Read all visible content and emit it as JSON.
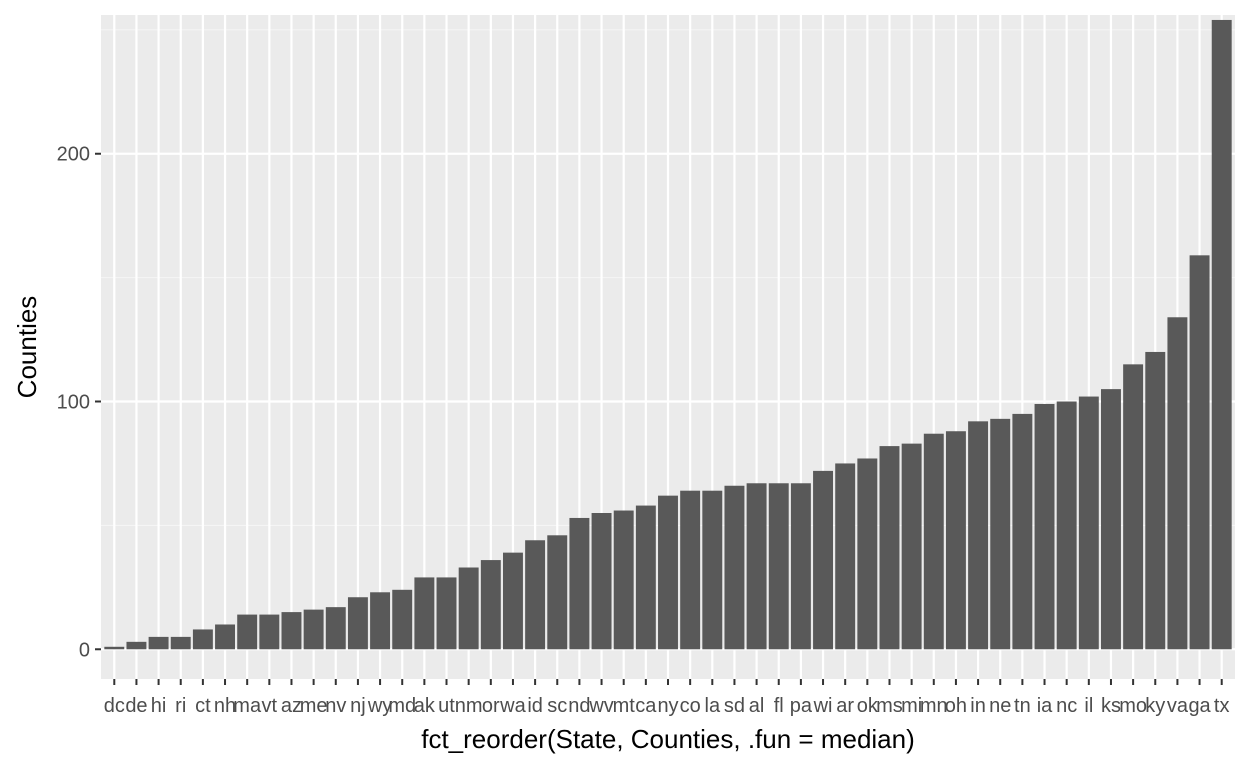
{
  "chart_data": {
    "type": "bar",
    "title": "",
    "xlabel": "fct_reorder(State, Counties, .fun = median)",
    "ylabel": "Counties",
    "ylim": [
      -12,
      256
    ],
    "yticks": [
      0,
      100,
      200
    ],
    "grid": true,
    "legend": "none",
    "colors": {
      "panel": "#ebebeb",
      "grid_major": "#ffffff",
      "grid_minor": "#f5f5f5",
      "bar": "#595959",
      "tick": "#333333",
      "tick_label": "#4d4d4d",
      "axis_title": "#000000"
    },
    "categories": [
      "dc",
      "de",
      "hi",
      "ri",
      "ct",
      "nh",
      "ma",
      "vt",
      "az",
      "me",
      "nv",
      "nj",
      "wy",
      "md",
      "ak",
      "ut",
      "nm",
      "or",
      "wa",
      "id",
      "sc",
      "nd",
      "wv",
      "mt",
      "ca",
      "ny",
      "co",
      "la",
      "sd",
      "al",
      "fl",
      "pa",
      "wi",
      "ar",
      "ok",
      "ms",
      "mi",
      "mn",
      "oh",
      "in",
      "ne",
      "tn",
      "ia",
      "nc",
      "il",
      "ks",
      "mo",
      "ky",
      "va",
      "ga",
      "tx"
    ],
    "values": [
      1,
      3,
      5,
      5,
      8,
      10,
      14,
      14,
      15,
      16,
      17,
      21,
      23,
      24,
      29,
      29,
      33,
      36,
      39,
      44,
      46,
      53,
      55,
      56,
      58,
      62,
      64,
      64,
      66,
      67,
      67,
      67,
      72,
      75,
      77,
      82,
      83,
      87,
      88,
      92,
      93,
      95,
      99,
      100,
      102,
      105,
      115,
      120,
      134,
      159,
      254
    ]
  }
}
